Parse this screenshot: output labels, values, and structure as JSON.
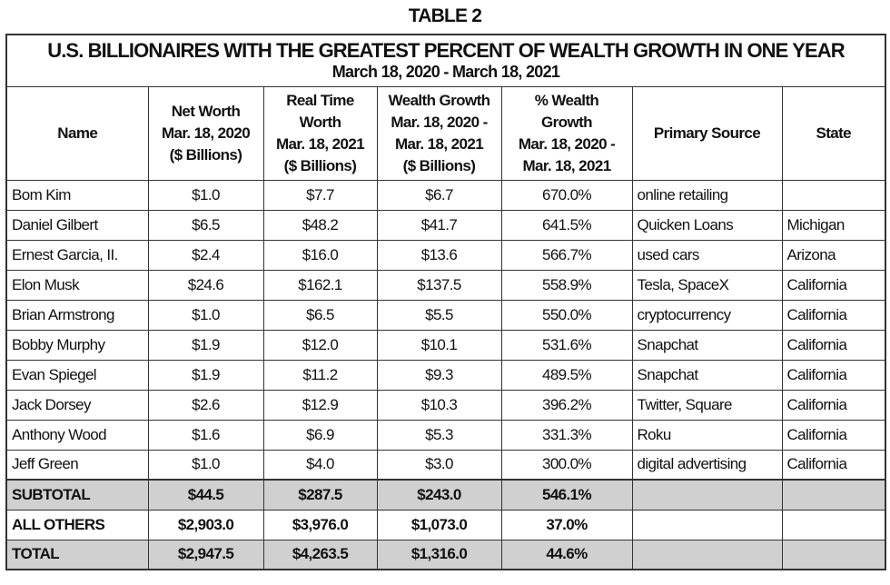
{
  "caption": "TABLE 2",
  "title": "U.S. BILLIONAIRES WITH THE GREATEST PERCENT OF WEALTH GROWTH IN ONE YEAR",
  "subtitle": "March 18, 2020 - March 18, 2021",
  "headers": [
    [
      "Name"
    ],
    [
      "Net Worth",
      "Mar. 18, 2020",
      "($ Billions)"
    ],
    [
      "Real Time",
      "Worth",
      "Mar. 18, 2021",
      "($ Billions)"
    ],
    [
      "Wealth Growth",
      "Mar. 18, 2020 -",
      "Mar. 18, 2021",
      "($ Billions)"
    ],
    [
      "% Wealth",
      "Growth",
      "Mar. 18, 2020 -",
      "Mar. 18, 2021"
    ],
    [
      "Primary Source"
    ],
    [
      "State"
    ]
  ],
  "rows": [
    [
      "Bom Kim",
      "$1.0",
      "$7.7",
      "$6.7",
      "670.0%",
      "online retailing",
      ""
    ],
    [
      "Daniel Gilbert",
      "$6.5",
      "$48.2",
      "$41.7",
      "641.5%",
      "Quicken Loans",
      "Michigan"
    ],
    [
      "Ernest Garcia, II.",
      "$2.4",
      "$16.0",
      "$13.6",
      "566.7%",
      "used cars",
      "Arizona"
    ],
    [
      "Elon Musk",
      "$24.6",
      "$162.1",
      "$137.5",
      "558.9%",
      "Tesla, SpaceX",
      "California"
    ],
    [
      "Brian Armstrong",
      "$1.0",
      "$6.5",
      "$5.5",
      "550.0%",
      "cryptocurrency",
      "California"
    ],
    [
      "Bobby Murphy",
      "$1.9",
      "$12.0",
      "$10.1",
      "531.6%",
      "Snapchat",
      "California"
    ],
    [
      "Evan Spiegel",
      "$1.9",
      "$11.2",
      "$9.3",
      "489.5%",
      "Snapchat",
      "California"
    ],
    [
      "Jack Dorsey",
      "$2.6",
      "$12.9",
      "$10.3",
      "396.2%",
      "Twitter, Square",
      "California"
    ],
    [
      "Anthony Wood",
      "$1.6",
      "$6.9",
      "$5.3",
      "331.3%",
      "Roku",
      "California"
    ],
    [
      "Jeff Green",
      "$1.0",
      "$4.0",
      "$3.0",
      "300.0%",
      "digital advertising",
      "California"
    ]
  ],
  "summary": [
    {
      "style": "gray",
      "cells": [
        "SUBTOTAL",
        "$44.5",
        "$287.5",
        "$243.0",
        "546.1%",
        "",
        ""
      ]
    },
    {
      "style": "bold",
      "cells": [
        "ALL OTHERS",
        "$2,903.0",
        "$3,976.0",
        "$1,073.0",
        "37.0%",
        "",
        ""
      ]
    },
    {
      "style": "gray",
      "cells": [
        "TOTAL",
        "$2,947.5",
        "$4,263.5",
        "$1,316.0",
        "44.6%",
        "",
        ""
      ]
    }
  ]
}
